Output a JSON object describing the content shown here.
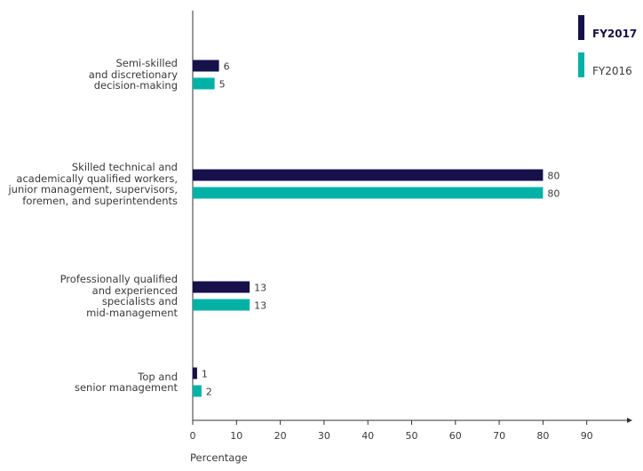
{
  "chart_data": {
    "type": "bar",
    "orientation": "horizontal",
    "categories": [
      "Semi-skilled\nand discretionary\ndecision-making",
      "Skilled technical and\nacademically qualified workers,\njunior management, supervisors,\nforemen, and superintendents",
      "Professionally qualified\nand experienced\nspecialists and\nmid-management",
      "Top and\nsenior management"
    ],
    "series": [
      {
        "name": "FY2017",
        "color": "#16114a",
        "values": [
          6,
          80,
          13,
          1
        ]
      },
      {
        "name": "FY2016",
        "color": "#00b2a6",
        "values": [
          5,
          80,
          13,
          2
        ]
      }
    ],
    "xlabel": "Percentage",
    "ylabel": "",
    "xlim": [
      0,
      100
    ],
    "xticks": [
      0,
      10,
      20,
      30,
      40,
      50,
      60,
      70,
      80,
      90
    ],
    "legend_position": "top-right",
    "grid": false
  }
}
